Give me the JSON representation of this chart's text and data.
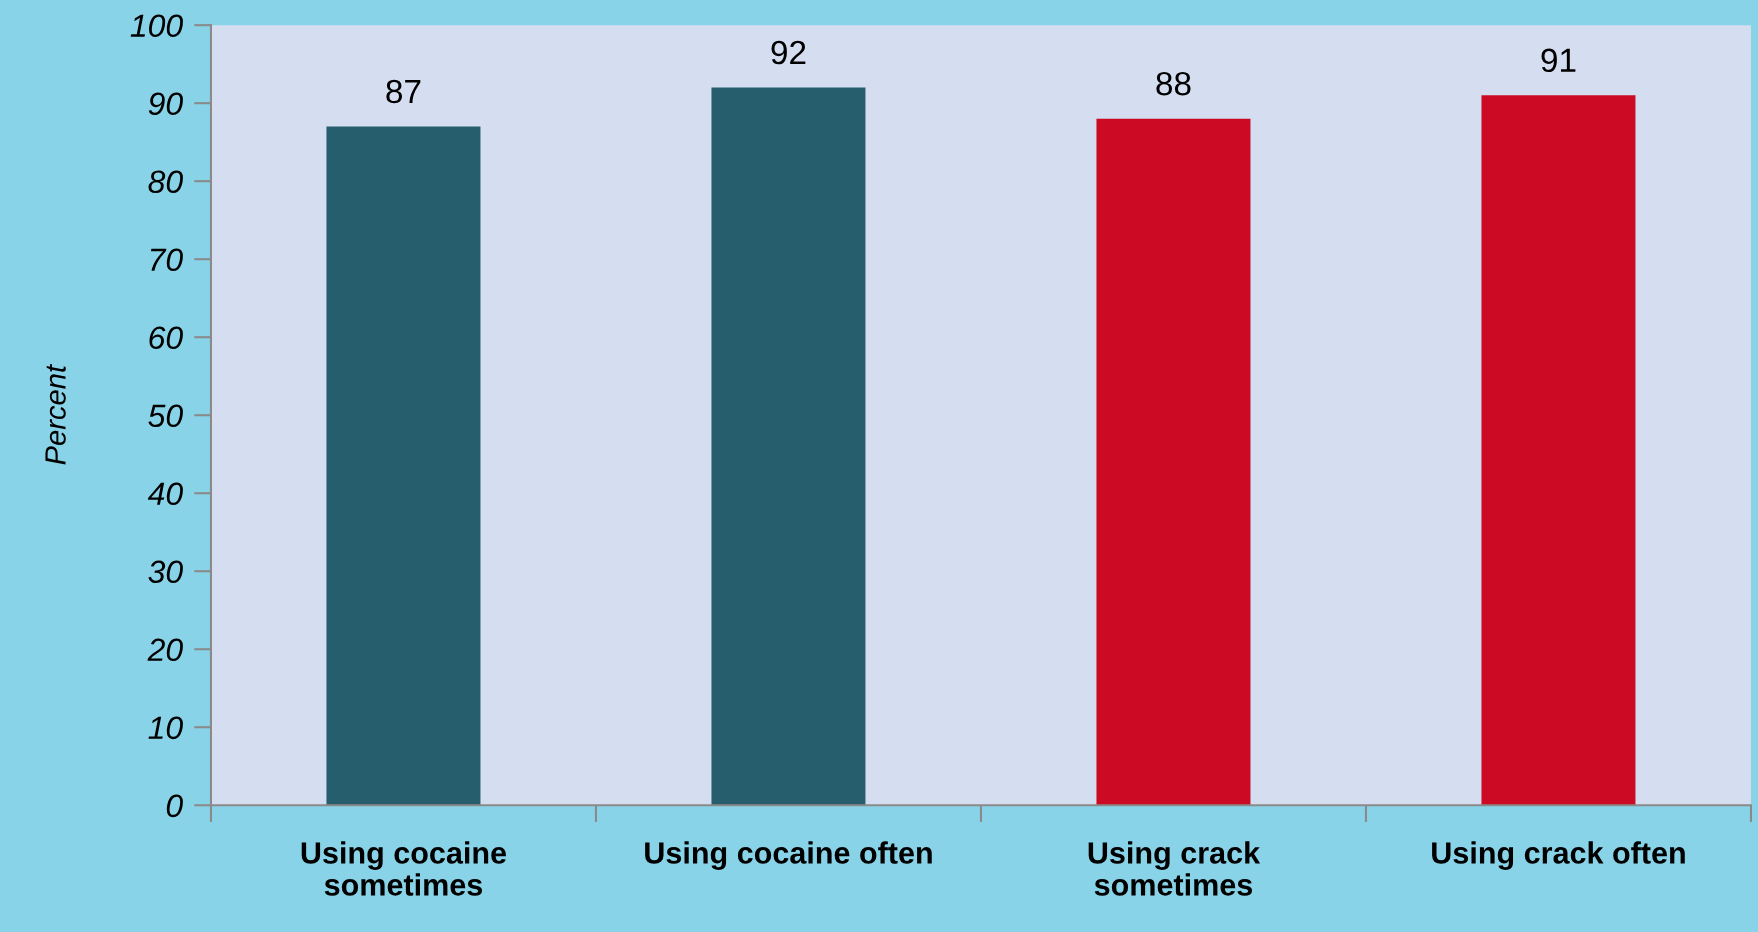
{
  "chart_data": {
    "type": "bar",
    "ylabel": "Percent",
    "categories": [
      "Using cocaine\nsometimes",
      "Using cocaine often",
      "Using crack\nsometimes",
      "Using crack often"
    ],
    "values": [
      87,
      92,
      88,
      91
    ],
    "colors": [
      "#265e6e",
      "#265e6e",
      "#cc0a24",
      "#cc0a24"
    ],
    "ylim": [
      0,
      100
    ],
    "yticks": [
      0,
      10,
      20,
      30,
      40,
      50,
      60,
      70,
      80,
      90,
      100
    ],
    "data_labels": true
  }
}
